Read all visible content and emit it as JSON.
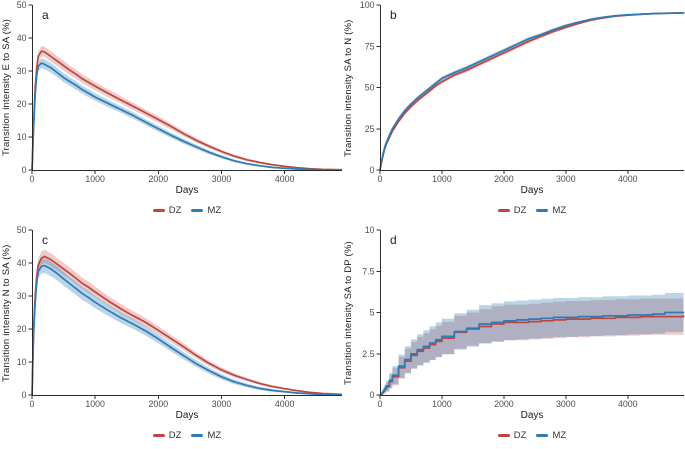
{
  "figure": {
    "x_axis_label": "Days",
    "legend": {
      "dz_label": "DZ",
      "mz_label": "MZ"
    },
    "colors": {
      "dz": "#c0453e",
      "mz": "#2b7cb8",
      "dz_band": "rgba(192,69,62,0.28)",
      "mz_band": "rgba(43,124,184,0.32)",
      "axis": "#2b2b2b",
      "tick_text": "#4d4d4d"
    }
  },
  "chart_data": [
    {
      "id": "a",
      "type": "line",
      "panel_label": "a",
      "ylabel": "Transition intensity E to SA (%)",
      "xlabel": "Days",
      "grid": false,
      "legend_position": "bottom",
      "xlim": [
        0,
        4900
      ],
      "ylim": [
        0,
        50
      ],
      "xticks": [
        0,
        1000,
        2000,
        3000,
        4000
      ],
      "yticks": [
        0,
        10,
        20,
        30,
        40,
        50
      ],
      "x": [
        0,
        25,
        50,
        75,
        100,
        150,
        200,
        300,
        400,
        500,
        600,
        700,
        800,
        900,
        1000,
        1200,
        1400,
        1600,
        1800,
        2000,
        2200,
        2400,
        2600,
        2800,
        3000,
        3200,
        3400,
        3600,
        3800,
        4000,
        4200,
        4400,
        4600,
        4900
      ],
      "series": [
        {
          "name": "DZ",
          "color_key": "dz",
          "step": false,
          "values": [
            0,
            14,
            25,
            31,
            34.5,
            36,
            35.8,
            34.4,
            33,
            31.6,
            30.2,
            29,
            27.6,
            26.5,
            25.4,
            23.3,
            21.3,
            19.3,
            17.3,
            15.3,
            13.2,
            11,
            9,
            7.2,
            5.6,
            4.2,
            3.1,
            2.3,
            1.6,
            1.1,
            0.7,
            0.4,
            0.2,
            0.1
          ],
          "band": [
            0,
            0.8,
            1.2,
            1.4,
            1.5,
            1.6,
            1.6,
            1.6,
            1.5,
            1.5,
            1.4,
            1.4,
            1.3,
            1.3,
            1.2,
            1.2,
            1.1,
            1.1,
            1,
            1,
            0.9,
            0.8,
            0.7,
            0.6,
            0.5,
            0.45,
            0.4,
            0.35,
            0.3,
            0.25,
            0.2,
            0.15,
            0.1,
            0.05
          ]
        },
        {
          "name": "MZ",
          "color_key": "mz",
          "step": false,
          "values": [
            0,
            13,
            23,
            28.5,
            31.5,
            32.4,
            32,
            31,
            29.5,
            28,
            26.8,
            25.6,
            24.3,
            23.2,
            22.1,
            20.2,
            18.4,
            16.5,
            14.5,
            12.5,
            10.5,
            8.7,
            7,
            5.4,
            4,
            2.8,
            1.9,
            1.3,
            0.8,
            0.5,
            0.3,
            0.15,
            0.05,
            0
          ],
          "band": [
            0,
            0.7,
            1.1,
            1.3,
            1.4,
            1.5,
            1.5,
            1.5,
            1.4,
            1.4,
            1.3,
            1.3,
            1.2,
            1.2,
            1.1,
            1.1,
            1,
            1,
            0.9,
            0.9,
            0.8,
            0.75,
            0.7,
            0.6,
            0.5,
            0.4,
            0.35,
            0.3,
            0.25,
            0.2,
            0.15,
            0.1,
            0.08,
            0.05
          ]
        }
      ]
    },
    {
      "id": "b",
      "type": "line",
      "panel_label": "b",
      "ylabel": "Transition intensity SA to N (%)",
      "xlabel": "Days",
      "grid": false,
      "legend_position": "bottom",
      "xlim": [
        0,
        4900
      ],
      "ylim": [
        0,
        100
      ],
      "xticks": [
        0,
        1000,
        2000,
        3000,
        4000
      ],
      "yticks": [
        0,
        25,
        50,
        75,
        100
      ],
      "x": [
        0,
        25,
        50,
        75,
        100,
        150,
        200,
        300,
        400,
        500,
        600,
        700,
        800,
        900,
        1000,
        1200,
        1400,
        1600,
        1800,
        2000,
        2200,
        2400,
        2600,
        2800,
        3000,
        3200,
        3400,
        3600,
        3800,
        4000,
        4200,
        4400,
        4600,
        4900
      ],
      "series": [
        {
          "name": "DZ",
          "color_key": "dz",
          "step": false,
          "values": [
            0,
            4.5,
            9,
            12.5,
            15.5,
            19.5,
            23.5,
            29.5,
            34.5,
            38.5,
            42,
            45,
            48,
            51,
            53.5,
            57.5,
            60.5,
            64,
            67.5,
            71,
            74.5,
            78,
            81,
            84,
            86.5,
            88.8,
            90.8,
            92.2,
            93.3,
            93.9,
            94.3,
            94.7,
            95,
            95.2
          ],
          "band": [
            0,
            0.4,
            0.6,
            0.7,
            0.8,
            0.9,
            1,
            1,
            1.1,
            1.1,
            1.1,
            1.2,
            1.2,
            1.2,
            1.2,
            1.2,
            1.2,
            1.2,
            1.2,
            1.2,
            1.1,
            1.1,
            1,
            1,
            0.9,
            0.8,
            0.7,
            0.7,
            0.6,
            0.6,
            0.5,
            0.5,
            0.5,
            0.5
          ]
        },
        {
          "name": "MZ",
          "color_key": "mz",
          "step": false,
          "values": [
            0,
            5,
            10,
            13.5,
            16.5,
            21,
            25,
            31,
            36,
            40,
            43.5,
            46.5,
            49.5,
            52.5,
            55.5,
            59,
            62,
            65.5,
            69,
            72.5,
            76,
            79.5,
            82,
            85,
            87.5,
            89.5,
            91.3,
            92.5,
            93.5,
            94,
            94.4,
            94.8,
            95,
            95.2
          ],
          "band": [
            0,
            0.4,
            0.6,
            0.7,
            0.8,
            0.9,
            1,
            1,
            1.1,
            1.1,
            1.1,
            1.2,
            1.2,
            1.2,
            1.2,
            1.2,
            1.2,
            1.2,
            1.2,
            1.2,
            1.1,
            1.1,
            1,
            1,
            0.9,
            0.8,
            0.7,
            0.7,
            0.6,
            0.6,
            0.5,
            0.5,
            0.5,
            0.5
          ]
        }
      ]
    },
    {
      "id": "c",
      "type": "line",
      "panel_label": "c",
      "ylabel": "Transition intensity N to SA (%)",
      "xlabel": "Days",
      "grid": false,
      "legend_position": "bottom",
      "xlim": [
        0,
        4900
      ],
      "ylim": [
        0,
        50
      ],
      "xticks": [
        0,
        1000,
        2000,
        3000,
        4000
      ],
      "yticks": [
        0,
        10,
        20,
        30,
        40,
        50
      ],
      "x": [
        0,
        25,
        50,
        75,
        100,
        150,
        200,
        300,
        400,
        500,
        600,
        700,
        800,
        900,
        1000,
        1200,
        1400,
        1600,
        1800,
        2000,
        2200,
        2400,
        2600,
        2800,
        3000,
        3200,
        3400,
        3600,
        3800,
        4000,
        4200,
        4400,
        4600,
        4900
      ],
      "series": [
        {
          "name": "DZ",
          "color_key": "dz",
          "step": false,
          "values": [
            0,
            20,
            30,
            36,
            39.5,
            41.5,
            42,
            41,
            39.6,
            38.2,
            36.8,
            35.3,
            33.8,
            32.6,
            31.2,
            28.6,
            26.2,
            24,
            22,
            19.6,
            17.1,
            14.6,
            12,
            9.6,
            7.6,
            6,
            4.7,
            3.5,
            2.6,
            1.9,
            1.3,
            0.8,
            0.45,
            0.2
          ],
          "band": [
            0,
            1.2,
            1.6,
            1.8,
            1.9,
            2,
            2,
            2,
            1.9,
            1.9,
            1.8,
            1.8,
            1.7,
            1.7,
            1.6,
            1.5,
            1.5,
            1.4,
            1.3,
            1.2,
            1.1,
            1,
            0.9,
            0.8,
            0.7,
            0.6,
            0.5,
            0.45,
            0.4,
            0.3,
            0.25,
            0.2,
            0.1,
            0.05
          ]
        },
        {
          "name": "MZ",
          "color_key": "mz",
          "step": false,
          "values": [
            0,
            18.5,
            28,
            34,
            37.5,
            39,
            39.2,
            38.2,
            36.8,
            35.2,
            33.7,
            32.2,
            30.7,
            29.5,
            28.1,
            25.7,
            23.5,
            21.5,
            19.4,
            17,
            14.4,
            11.9,
            9.5,
            7.4,
            5.5,
            4,
            2.9,
            2,
            1.4,
            1,
            0.6,
            0.35,
            0.15,
            0
          ],
          "band": [
            0,
            1.3,
            1.8,
            2,
            2.1,
            2.2,
            2.2,
            2.2,
            2.1,
            2.1,
            2,
            2,
            1.9,
            1.9,
            1.8,
            1.7,
            1.6,
            1.5,
            1.4,
            1.3,
            1.2,
            1.1,
            1,
            0.9,
            0.8,
            0.7,
            0.6,
            0.5,
            0.4,
            0.35,
            0.3,
            0.2,
            0.12,
            0.05
          ]
        }
      ]
    },
    {
      "id": "d",
      "type": "line",
      "panel_label": "d",
      "ylabel": "Transition intensity SA to DP (%)",
      "xlabel": "Days",
      "grid": false,
      "legend_position": "bottom",
      "xlim": [
        0,
        4900
      ],
      "ylim": [
        0,
        10
      ],
      "xticks": [
        0,
        1000,
        2000,
        3000,
        4000
      ],
      "yticks": [
        0,
        2.5,
        5,
        7.5,
        10
      ],
      "x": [
        0,
        25,
        50,
        75,
        100,
        150,
        200,
        300,
        400,
        500,
        600,
        700,
        800,
        900,
        1000,
        1200,
        1400,
        1600,
        1800,
        2000,
        2200,
        2400,
        2600,
        2800,
        3000,
        3200,
        3400,
        3600,
        3800,
        4000,
        4200,
        4400,
        4600,
        4900
      ],
      "series": [
        {
          "name": "DZ",
          "color_key": "dz",
          "step": true,
          "values": [
            0,
            0.1,
            0.22,
            0.35,
            0.5,
            0.8,
            1.1,
            1.65,
            2.05,
            2.4,
            2.65,
            2.85,
            3.05,
            3.25,
            3.45,
            3.8,
            4,
            4.15,
            4.3,
            4.4,
            4.4,
            4.45,
            4.5,
            4.55,
            4.6,
            4.6,
            4.65,
            4.65,
            4.7,
            4.7,
            4.75,
            4.75,
            4.75,
            4.8
          ],
          "band": [
            0,
            0.08,
            0.15,
            0.22,
            0.3,
            0.42,
            0.52,
            0.66,
            0.75,
            0.82,
            0.87,
            0.9,
            0.93,
            0.95,
            0.98,
            1,
            1,
            1.05,
            1.08,
            1.08,
            1.08,
            1.08,
            1.1,
            1.1,
            1.1,
            1.1,
            1.1,
            1.1,
            1.1,
            1.1,
            1.1,
            1.1,
            1.1,
            1.1
          ]
        },
        {
          "name": "MZ",
          "color_key": "mz",
          "step": true,
          "values": [
            0,
            0.1,
            0.25,
            0.4,
            0.55,
            0.9,
            1.2,
            1.75,
            2.15,
            2.5,
            2.75,
            2.95,
            3.15,
            3.35,
            3.55,
            3.85,
            4.05,
            4.3,
            4.4,
            4.5,
            4.55,
            4.6,
            4.65,
            4.7,
            4.7,
            4.75,
            4.75,
            4.8,
            4.8,
            4.85,
            4.85,
            4.9,
            5,
            5
          ],
          "band": [
            0,
            0.1,
            0.18,
            0.25,
            0.32,
            0.45,
            0.55,
            0.7,
            0.8,
            0.88,
            0.93,
            0.98,
            1.02,
            1.05,
            1.08,
            1.1,
            1.12,
            1.15,
            1.15,
            1.18,
            1.18,
            1.18,
            1.18,
            1.18,
            1.18,
            1.18,
            1.18,
            1.18,
            1.18,
            1.18,
            1.18,
            1.18,
            1.18,
            1.18
          ]
        }
      ]
    }
  ]
}
